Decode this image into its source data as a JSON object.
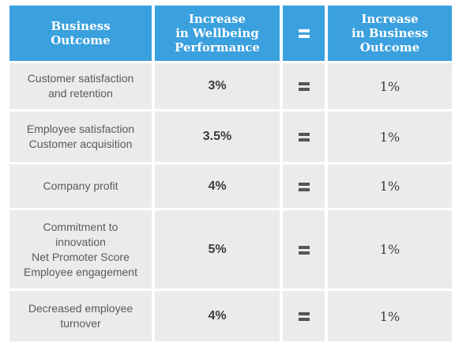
{
  "header": {
    "col1": "Business\nOutcome",
    "col2": "Increase\nin Wellbeing\nPerformance",
    "col3": "=",
    "col4": "Increase\nin Business\nOutcome"
  },
  "rows": [
    {
      "outcome": "Customer satisfaction\nand retention",
      "wellbeing": "3%",
      "equals": "=",
      "business": "1%"
    },
    {
      "outcome": "Employee satisfaction\nCustomer acquisition",
      "wellbeing": "3.5%",
      "equals": "=",
      "business": "1%"
    },
    {
      "outcome": "Company profit",
      "wellbeing": "4%",
      "equals": "=",
      "business": "1%"
    },
    {
      "outcome": "Commitment to\ninnovation\nNet Promoter Score\nEmployee engagement",
      "wellbeing": "5%",
      "equals": "=",
      "business": "1%"
    },
    {
      "outcome": "Decreased employee\nturnover",
      "wellbeing": "4%",
      "equals": "=",
      "business": "1%"
    }
  ],
  "colors": {
    "header_bg": "#3aa0de",
    "row_bg": "#ebebeb",
    "header_text": "#ffffff"
  }
}
